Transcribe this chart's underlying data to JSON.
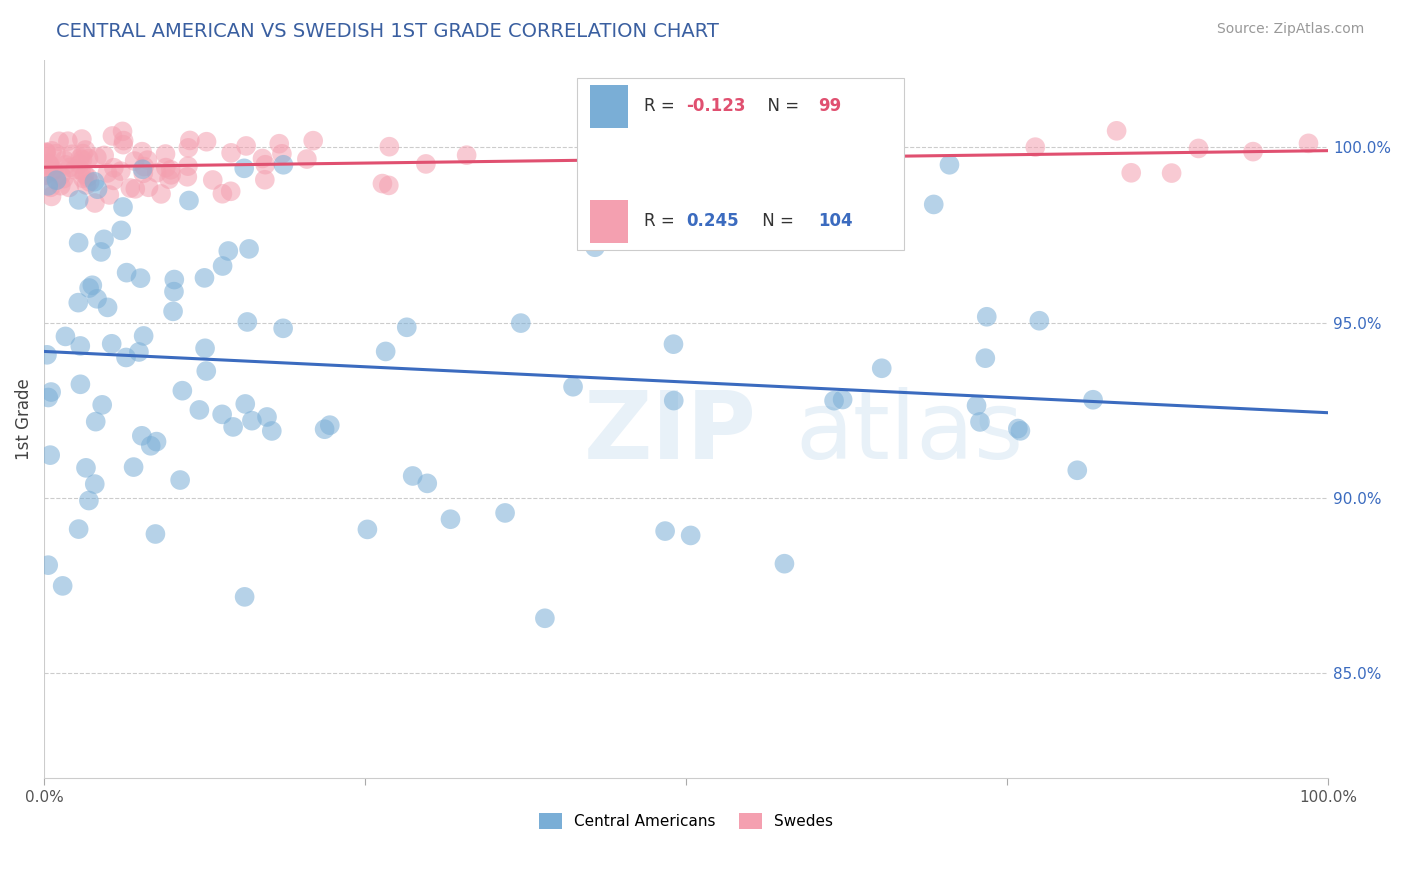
{
  "title": "CENTRAL AMERICAN VS SWEDISH 1ST GRADE CORRELATION CHART",
  "source": "Source: ZipAtlas.com",
  "ylabel": "1st Grade",
  "right_yticks": [
    100.0,
    95.0,
    90.0,
    85.0
  ],
  "xlim": [
    0.0,
    100.0
  ],
  "ylim": [
    82.0,
    102.5
  ],
  "blue_R": -0.123,
  "blue_N": 99,
  "pink_R": 0.245,
  "pink_N": 104,
  "blue_color": "#7aaed6",
  "pink_color": "#f4a0b0",
  "blue_line_color": "#3b6bbf",
  "pink_line_color": "#e05070",
  "title_color": "#3a5fa0",
  "source_color": "#999999",
  "legend_label_blue": "Central Americans",
  "legend_label_pink": "Swedes",
  "watermark_zip": "ZIP",
  "watermark_atlas": "atlas",
  "grid_color": "#cccccc",
  "background_color": "#ffffff",
  "legend_R_blue_color": "#e05070",
  "legend_R_pink_color": "#3b6bbf",
  "legend_N_blue_color": "#e05070",
  "legend_N_pink_color": "#e05070"
}
